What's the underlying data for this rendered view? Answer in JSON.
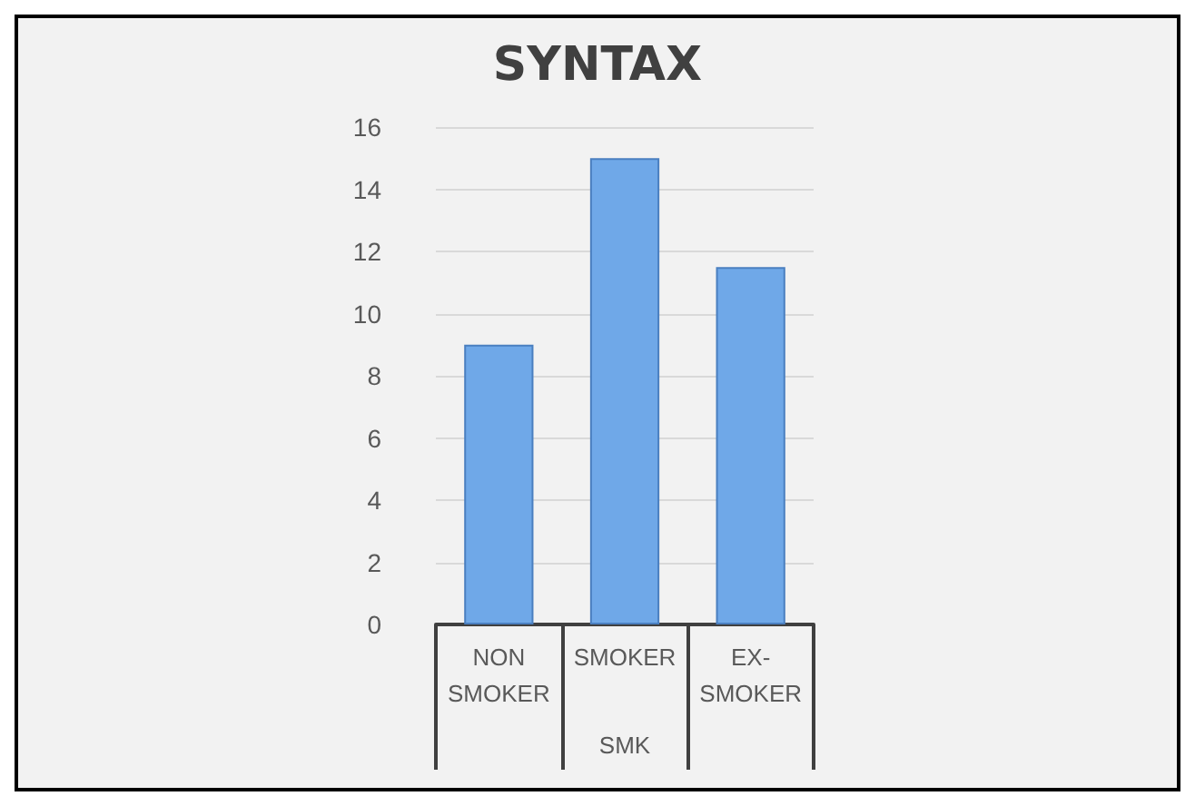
{
  "chart_data": {
    "type": "bar",
    "title": "SYNTAX",
    "xlabel": "SMK",
    "categories": [
      "NON\nSMOKER",
      "SMOKER",
      "EX-\nSMOKER"
    ],
    "values": [
      9,
      15,
      11.5
    ],
    "color": "#6fa8e8",
    "ylim": [
      0,
      16
    ],
    "yticks": [
      0,
      2,
      4,
      6,
      8,
      10,
      12,
      14,
      16
    ],
    "grid": "y"
  }
}
